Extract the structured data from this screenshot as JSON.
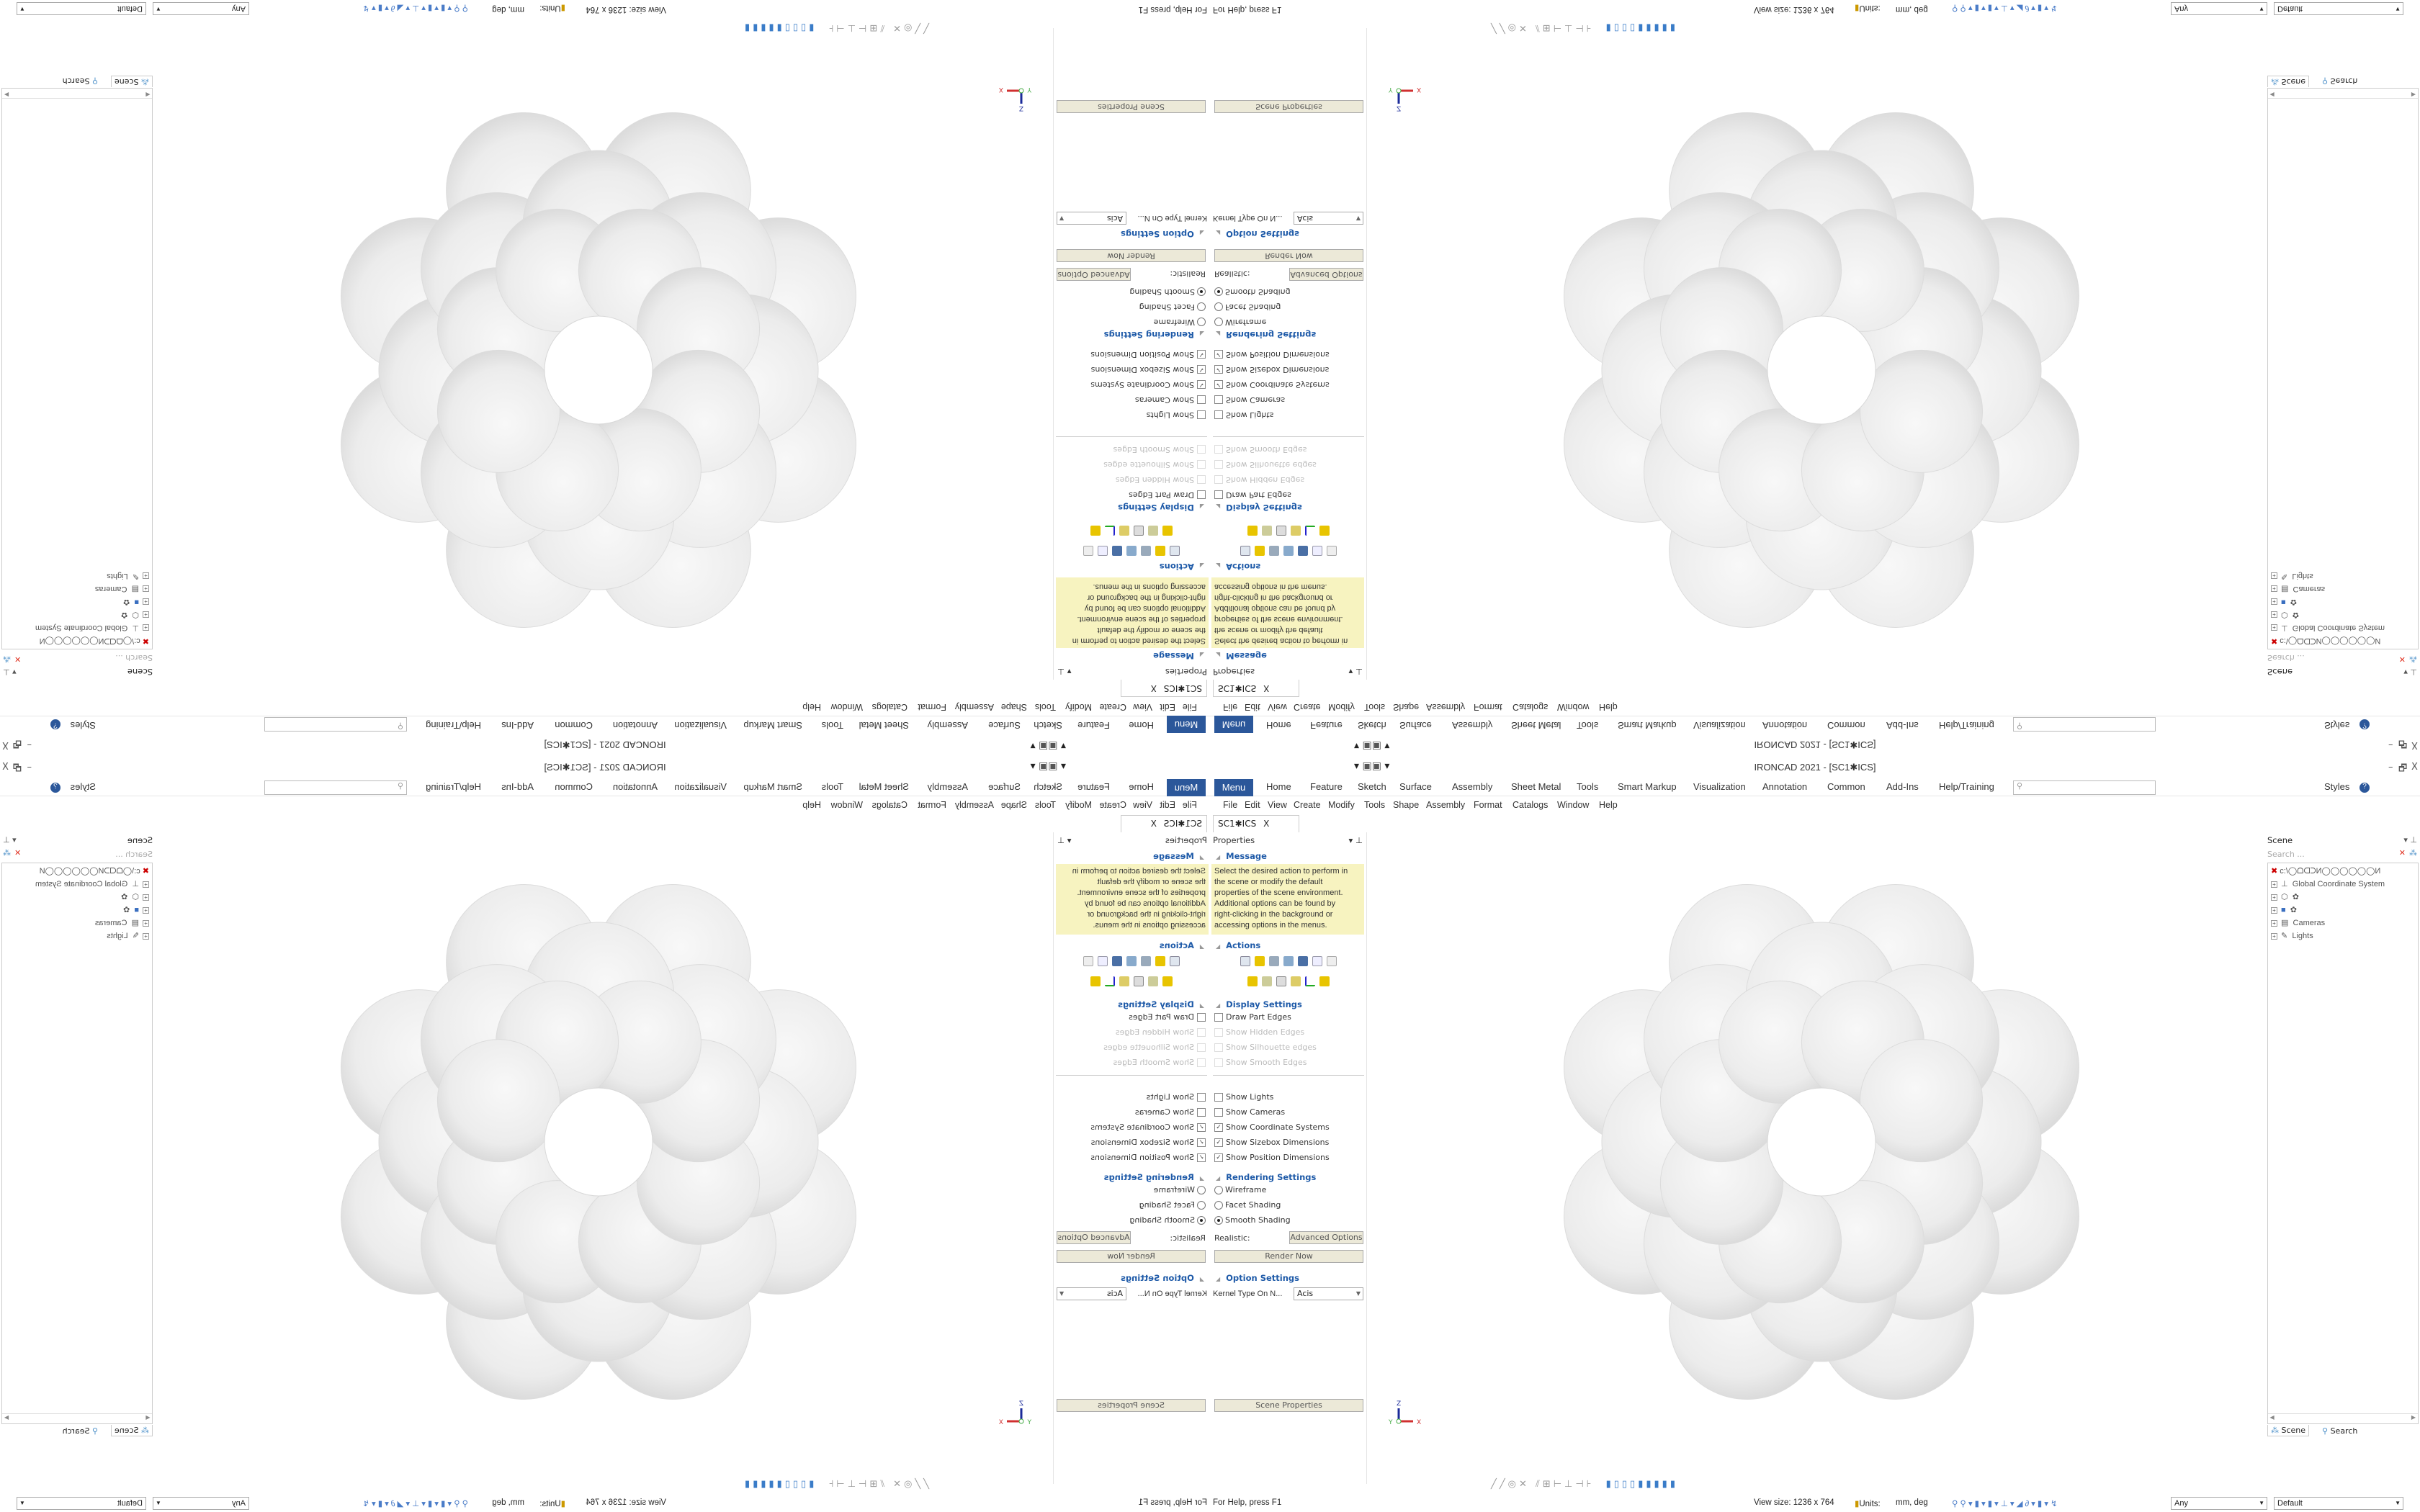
{
  "window": {
    "title": "IRONCAD 2021 - [SC1✱ICS]",
    "min": "–",
    "restore": "🗗",
    "close": "X"
  },
  "ribbon": {
    "menu": "Menu",
    "tabs": [
      "Home",
      "Feature",
      "Sketch",
      "Surface",
      "Assembly",
      "Sheet Metal",
      "Tools",
      "Smart Markup",
      "Visualization",
      "Annotation",
      "Common",
      "Add-Ins",
      "Help/Training"
    ],
    "search_placeholder": "⚲",
    "styles": "Styles",
    "help": "?"
  },
  "menubar": {
    "items": [
      "File",
      "Edit",
      "View",
      "Create",
      "Modify",
      "Tools",
      "Shape",
      "Assembly",
      "Format",
      "Catalogs",
      "Window",
      "Help"
    ]
  },
  "doc_tab": {
    "label": "SC1✱ICS",
    "close": "X"
  },
  "properties": {
    "title": "Properties",
    "message_header": "Message",
    "message_lines": [
      "Select the desired action to perform in",
      "the scene or modify the default",
      "properties of the scene environment.",
      "Additional options can be found by",
      "right-clicking in the background or",
      "accessing options in the menus."
    ],
    "actions_header": "Actions",
    "display_header": "Display Settings",
    "display": [
      {
        "label": "Draw Part Edges",
        "checked": false,
        "enabled": true
      },
      {
        "label": "Show Hidden Edges",
        "checked": false,
        "enabled": false
      },
      {
        "label": "Show Silhouette edges",
        "checked": false,
        "enabled": false
      },
      {
        "label": "Show Smooth Edges",
        "checked": false,
        "enabled": false
      }
    ],
    "show": [
      {
        "label": "Show Lights",
        "checked": false
      },
      {
        "label": "Show Cameras",
        "checked": false
      },
      {
        "label": "Show Coordinate Systems",
        "checked": true
      },
      {
        "label": "Show Sizebox Dimensions",
        "checked": true
      },
      {
        "label": "Show Position Dimensions",
        "checked": true
      }
    ],
    "rendering_header": "Rendering Settings",
    "rendering": [
      {
        "label": "Wireframe",
        "selected": false
      },
      {
        "label": "Facet Shading",
        "selected": false
      },
      {
        "label": "Smooth Shading",
        "selected": true
      }
    ],
    "realistic": "Realistic:",
    "advanced": "Advanced Options",
    "render_now": "Render Now",
    "option_header": "Option Settings",
    "kernel_label": "Kernel Type On N...",
    "kernel_value": "Acis",
    "scene_properties": "Scene Properties"
  },
  "scene": {
    "title": "Scene",
    "search_placeholder": "Search ...",
    "root": "c:\\◯ᗝᗡᑐИ◯◯◯◯◯◯И",
    "items": [
      "Global Coordinate System",
      "✿",
      "✿",
      "Cameras",
      "Lights"
    ],
    "tab_scene": "Scene",
    "tab_search": "Search"
  },
  "triad": {
    "x": "X",
    "y": "Y",
    "z": "Z"
  },
  "status": {
    "help": "For Help, press F1",
    "view_size": "View size: 1236 x 764",
    "units_label": "Units:",
    "units": "mm, deg",
    "filter": "Any",
    "style": "Default"
  },
  "colors": {
    "accent": "#2b579a",
    "message_bg": "#f7f3c0",
    "section": "#1e5aa8"
  }
}
